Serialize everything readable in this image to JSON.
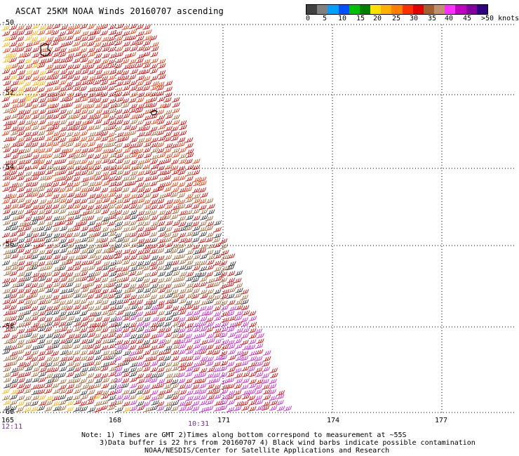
{
  "title": "ASCAT 25KM NOAA Winds 20160707 ascending",
  "legend": {
    "colors": [
      "#404040",
      "#808080",
      "#00a0ff",
      "#0050ff",
      "#00c000",
      "#008000",
      "#ffe000",
      "#ffb000",
      "#ff8000",
      "#ff3000",
      "#e00000",
      "#a06030",
      "#c09070",
      "#ff30ff",
      "#c000c0",
      "#8000a0",
      "#300080"
    ],
    "labels": [
      "0",
      "5",
      "10",
      "15",
      "20",
      "25",
      "30",
      "35",
      "40",
      "45",
      ">50 knots"
    ]
  },
  "axes": {
    "lat_labels": [
      "-50",
      "-52",
      "-54",
      "-56",
      "-58",
      "-60"
    ],
    "lon_labels": [
      "165",
      "168",
      "171",
      "174",
      "177"
    ]
  },
  "times": {
    "left": "12:11",
    "center": "10:31"
  },
  "notes": {
    "line1": "Note: 1) Times are GMT 2)Times along bottom correspond to measurement at ~55S",
    "line2": "3)Data buffer is 22 hrs from 20160707 4) Black wind barbs indicate possible contamination",
    "line3": "NOAA/NESDIS/Center for Satellite Applications and Research"
  },
  "map_data": {
    "lat_range": [
      -60,
      -50
    ],
    "lon_range": [
      165,
      178
    ],
    "swath": "wind barbs cover western part of map, widening toward the south",
    "dominant_colors": [
      "#ff8000",
      "#e00000",
      "#a06030",
      "#ff30ff",
      "#000000"
    ]
  }
}
